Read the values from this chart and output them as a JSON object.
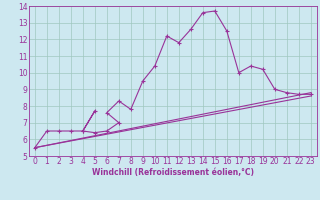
{
  "xlabel": "Windchill (Refroidissement éolien,°C)",
  "background_color": "#cde8f0",
  "grid_color": "#a0c8c0",
  "line_color": "#993399",
  "spine_color": "#993399",
  "xlim": [
    -0.5,
    23.5
  ],
  "ylim": [
    5,
    14
  ],
  "xticks": [
    0,
    1,
    2,
    3,
    4,
    5,
    6,
    7,
    8,
    9,
    10,
    11,
    12,
    13,
    14,
    15,
    16,
    17,
    18,
    19,
    20,
    21,
    22,
    23
  ],
  "yticks": [
    5,
    6,
    7,
    8,
    9,
    10,
    11,
    12,
    13,
    14
  ],
  "main_x": [
    0,
    1,
    2,
    3,
    4,
    5,
    4,
    5,
    6,
    7,
    6,
    7,
    8,
    9,
    10,
    11,
    12,
    13,
    14,
    15,
    16,
    17,
    18,
    19,
    20,
    21,
    22,
    23
  ],
  "main_y": [
    5.5,
    6.5,
    6.5,
    6.5,
    6.5,
    7.7,
    6.5,
    6.4,
    6.5,
    7.0,
    7.6,
    8.3,
    7.8,
    9.5,
    10.4,
    12.2,
    11.8,
    12.6,
    13.6,
    13.7,
    12.5,
    10.0,
    10.4,
    10.2,
    9.0,
    8.8,
    8.7,
    8.7
  ],
  "line1_x": [
    0,
    23
  ],
  "line1_y": [
    5.5,
    8.8
  ],
  "line2_x": [
    0,
    23
  ],
  "line2_y": [
    5.5,
    8.6
  ],
  "tick_fontsize": 5.5,
  "xlabel_fontsize": 5.5,
  "lw": 0.8,
  "marker_size": 2.5
}
